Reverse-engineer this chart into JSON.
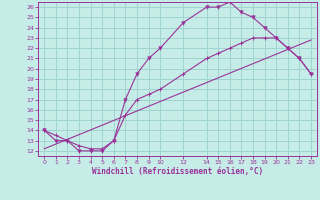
{
  "xlabel": "Windchill (Refroidissement éolien,°C)",
  "bg_color": "#c6ece8",
  "grid_color": "#a0d4d0",
  "line_color": "#993399",
  "xlim": [
    -0.5,
    23.5
  ],
  "ylim": [
    11.5,
    26.5
  ],
  "xtick_pos": [
    0,
    1,
    2,
    3,
    4,
    5,
    6,
    7,
    8,
    9,
    10,
    12,
    14,
    15,
    16,
    17,
    18,
    19,
    20,
    21,
    22,
    23
  ],
  "yticks": [
    12,
    13,
    14,
    15,
    16,
    17,
    18,
    19,
    20,
    21,
    22,
    23,
    24,
    25,
    26
  ],
  "series1_x": [
    0,
    1,
    2,
    3,
    4,
    5,
    6,
    7,
    8,
    9,
    10,
    12,
    14,
    15,
    16,
    17,
    18,
    19,
    20,
    21,
    22,
    23
  ],
  "series1_y": [
    14,
    13,
    13,
    12,
    12,
    12,
    13,
    17,
    19.5,
    21,
    22,
    24.5,
    26,
    26,
    26.5,
    25.5,
    25,
    24,
    23,
    22,
    21,
    19.5
  ],
  "series2_x": [
    0,
    1,
    2,
    3,
    4,
    5,
    6,
    7,
    8,
    9,
    10,
    12,
    14,
    15,
    16,
    17,
    18,
    19,
    20,
    21,
    22,
    23
  ],
  "series2_y": [
    14,
    13.5,
    13,
    12.5,
    12.2,
    12.2,
    13,
    15.5,
    17,
    17.5,
    18,
    19.5,
    21,
    21.5,
    22,
    22.5,
    23,
    23,
    23,
    22,
    21,
    19.5
  ],
  "series3_x": [
    0,
    23
  ],
  "series3_y": [
    12.2,
    22.8
  ],
  "xtick_labels": [
    "0",
    "1",
    "2",
    "3",
    "4",
    "5",
    "6",
    "7",
    "8",
    "9",
    "10",
    "12",
    "14",
    "15",
    "16",
    "17",
    "18",
    "19",
    "20",
    "21",
    "22",
    "23"
  ]
}
